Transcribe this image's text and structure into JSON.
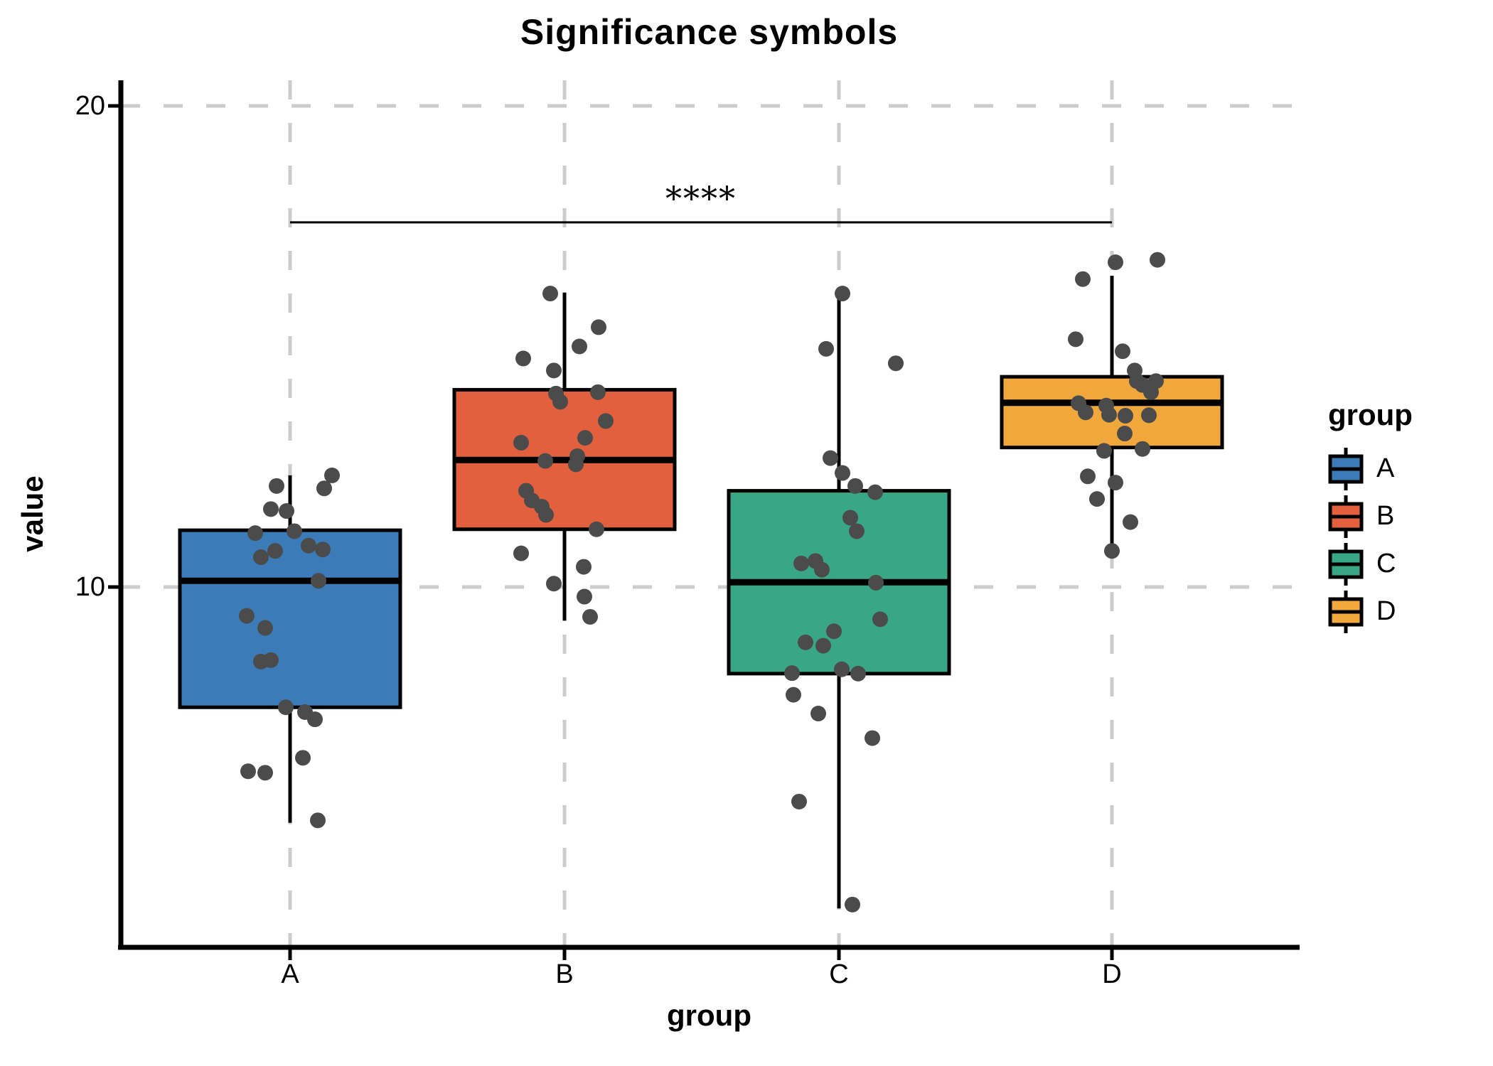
{
  "title": "Significance symbols",
  "axes": {
    "y_title": "value",
    "x_title": "group",
    "x_categories": [
      "A",
      "B",
      "C",
      "D"
    ],
    "y_ticks": [
      10,
      20
    ]
  },
  "legend": {
    "title": "group",
    "items": [
      {
        "label": "A",
        "color": "#3b7cb8"
      },
      {
        "label": "B",
        "color": "#e2603d"
      },
      {
        "label": "C",
        "color": "#39a785"
      },
      {
        "label": "D",
        "color": "#f0a73b"
      }
    ]
  },
  "style_colors": {
    "point": "#4b4b4b",
    "gridline": "#cccccc",
    "axis": "#000000"
  },
  "chart_data": {
    "type": "box",
    "title": "Significance symbols",
    "xlabel": "group",
    "ylabel": "value",
    "categories": [
      "A",
      "B",
      "C",
      "D"
    ],
    "y_ticks": [
      10,
      20
    ],
    "ylim": [
      2.5,
      20.5
    ],
    "grid": "dashed-major",
    "legend_position": "right",
    "significance": {
      "label": "****",
      "from": "A",
      "to": "D",
      "line_y": 17.58,
      "label_y": 18.1
    },
    "series": [
      {
        "name": "A",
        "color": "#3b7cb8",
        "box": {
          "whisker_low": 5.1,
          "q1": 7.5,
          "median": 10.13,
          "q3": 11.18,
          "whisker_high": 12.32
        },
        "points": [
          [
            -19,
            12.1
          ],
          [
            59,
            12.32
          ],
          [
            48,
            12.05
          ],
          [
            -27,
            11.62
          ],
          [
            -5,
            11.58
          ],
          [
            -49,
            11.12
          ],
          [
            6,
            11.16
          ],
          [
            -41,
            10.62
          ],
          [
            -21,
            10.75
          ],
          [
            26,
            10.86
          ],
          [
            46,
            10.78
          ],
          [
            40,
            10.13
          ],
          [
            -61,
            9.4
          ],
          [
            -35,
            9.15
          ],
          [
            -41,
            8.45
          ],
          [
            -27,
            8.48
          ],
          [
            -6,
            7.5
          ],
          [
            21,
            7.4
          ],
          [
            35,
            7.25
          ],
          [
            18,
            6.45
          ],
          [
            -59,
            6.17
          ],
          [
            -35,
            6.14
          ],
          [
            39,
            5.15
          ]
        ]
      },
      {
        "name": "B",
        "color": "#e2603d",
        "box": {
          "whisker_low": 9.3,
          "q1": 11.2,
          "median": 12.64,
          "q3": 14.1,
          "whisker_high": 16.12
        },
        "points": [
          [
            -20,
            16.1
          ],
          [
            48,
            15.4
          ],
          [
            21,
            15.0
          ],
          [
            -58,
            14.75
          ],
          [
            -15,
            14.5
          ],
          [
            -12,
            14.02
          ],
          [
            47,
            14.05
          ],
          [
            -6,
            13.85
          ],
          [
            58,
            13.45
          ],
          [
            29,
            13.1
          ],
          [
            -61,
            13.0
          ],
          [
            18,
            12.72
          ],
          [
            -27,
            12.62
          ],
          [
            16,
            12.55
          ],
          [
            -54,
            12.0
          ],
          [
            -46,
            11.8
          ],
          [
            -32,
            11.67
          ],
          [
            -26,
            11.5
          ],
          [
            45,
            11.2
          ],
          [
            -61,
            10.7
          ],
          [
            27,
            10.42
          ],
          [
            -15,
            10.07
          ],
          [
            28,
            9.8
          ],
          [
            36,
            9.38
          ]
        ]
      },
      {
        "name": "C",
        "color": "#39a785",
        "box": {
          "whisker_low": 3.32,
          "q1": 8.2,
          "median": 10.1,
          "q3": 12.0,
          "whisker_high": 16.12
        },
        "points": [
          [
            5,
            16.1
          ],
          [
            -18,
            14.95
          ],
          [
            80,
            14.65
          ],
          [
            -12,
            12.68
          ],
          [
            5,
            12.37
          ],
          [
            23,
            12.1
          ],
          [
            51,
            11.97
          ],
          [
            16,
            11.44
          ],
          [
            25,
            11.16
          ],
          [
            -33,
            10.54
          ],
          [
            -53,
            10.49
          ],
          [
            -24,
            10.36
          ],
          [
            52,
            10.09
          ],
          [
            58,
            9.33
          ],
          [
            -7,
            9.08
          ],
          [
            -47,
            8.85
          ],
          [
            -22,
            8.78
          ],
          [
            4,
            8.29
          ],
          [
            -66,
            8.21
          ],
          [
            27,
            8.2
          ],
          [
            -64,
            7.76
          ],
          [
            -29,
            7.37
          ],
          [
            47,
            6.86
          ],
          [
            -56,
            5.54
          ],
          [
            19,
            3.4
          ]
        ]
      },
      {
        "name": "D",
        "color": "#f0a73b",
        "box": {
          "whisker_low": 10.78,
          "q1": 12.9,
          "median": 13.83,
          "q3": 14.37,
          "whisker_high": 16.47
        },
        "points": [
          [
            5,
            16.75
          ],
          [
            64,
            16.8
          ],
          [
            -41,
            16.4
          ],
          [
            -51,
            15.15
          ],
          [
            15,
            14.9
          ],
          [
            32,
            14.5
          ],
          [
            35,
            14.28
          ],
          [
            62,
            14.28
          ],
          [
            43,
            14.2
          ],
          [
            55,
            14.05
          ],
          [
            -47,
            13.82
          ],
          [
            -8,
            13.77
          ],
          [
            -37,
            13.63
          ],
          [
            -4,
            13.58
          ],
          [
            19,
            13.56
          ],
          [
            52,
            13.57
          ],
          [
            18,
            13.19
          ],
          [
            43,
            12.87
          ],
          [
            -11,
            12.83
          ],
          [
            -34,
            12.3
          ],
          [
            5,
            12.17
          ],
          [
            -21,
            11.83
          ],
          [
            26,
            11.35
          ],
          [
            0,
            10.75
          ]
        ]
      }
    ]
  }
}
